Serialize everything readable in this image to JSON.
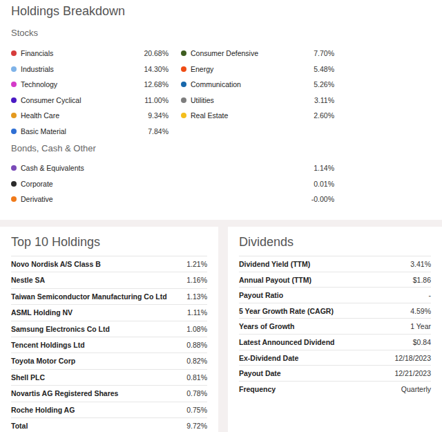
{
  "title": "Holdings Breakdown",
  "chart_data": {
    "type": "pie",
    "groups": [
      {
        "name": "Stocks",
        "categories": [
          "Financials",
          "Industrials",
          "Technology",
          "Consumer Cyclical",
          "Health Care",
          "Basic Material",
          "Consumer Defensive",
          "Energy",
          "Communication",
          "Utilities",
          "Real Estate"
        ],
        "values": [
          20.68,
          14.3,
          12.68,
          11.0,
          9.34,
          7.84,
          7.7,
          5.48,
          5.26,
          3.11,
          2.6
        ],
        "value_labels": [
          "20.68%",
          "14.30%",
          "12.68%",
          "11.00%",
          "9.34%",
          "7.84%",
          "7.70%",
          "5.48%",
          "5.26%",
          "3.11%",
          "2.60%"
        ],
        "colors": [
          "#d63c3b",
          "#7fb3e8",
          "#d43ac8",
          "#4a1ac4",
          "#e4991f",
          "#2f6fd4",
          "#3e5d20",
          "#ef4c14",
          "#1767ab",
          "#7d7d7d",
          "#f4be1c"
        ]
      },
      {
        "name": "Bonds, Cash & Other",
        "categories": [
          "Cash & Equivalents",
          "Corporate",
          "Derivative"
        ],
        "values": [
          1.14,
          0.01,
          -0.0
        ],
        "value_labels": [
          "1.14%",
          "0.01%",
          "-0.00%"
        ],
        "colors": [
          "#7a4ab8",
          "#2b2b2b",
          "#f07a1a"
        ]
      }
    ]
  },
  "top_holdings": {
    "title": "Top 10 Holdings",
    "rows": [
      [
        "Novo Nordisk A/S Class B",
        "1.21%"
      ],
      [
        "Nestle SA",
        "1.16%"
      ],
      [
        "Taiwan Semiconductor Manufacturing Co Ltd",
        "1.13%"
      ],
      [
        "ASML Holding NV",
        "1.11%"
      ],
      [
        "Samsung Electronics Co Ltd",
        "1.08%"
      ],
      [
        "Tencent Holdings Ltd",
        "0.88%"
      ],
      [
        "Toyota Motor Corp",
        "0.82%"
      ],
      [
        "Shell PLC",
        "0.81%"
      ],
      [
        "Novartis AG Registered Shares",
        "0.78%"
      ],
      [
        "Roche Holding AG",
        "0.75%"
      ],
      [
        "Total",
        "9.72%"
      ]
    ]
  },
  "dividends": {
    "title": "Dividends",
    "rows": [
      [
        "Dividend Yield (TTM)",
        "3.41%"
      ],
      [
        "Annual Payout (TTM)",
        "$1.86"
      ],
      [
        "Payout Ratio",
        "-"
      ],
      [
        "5 Year Growth Rate (CAGR)",
        "4.59%"
      ],
      [
        "Years of Growth",
        "1 Year"
      ],
      [
        "Latest Announced Dividend",
        "$0.84"
      ],
      [
        "Ex-Dividend Date",
        "12/18/2023"
      ],
      [
        "Payout Date",
        "12/21/2023"
      ],
      [
        "Frequency",
        "Quarterly"
      ]
    ]
  }
}
